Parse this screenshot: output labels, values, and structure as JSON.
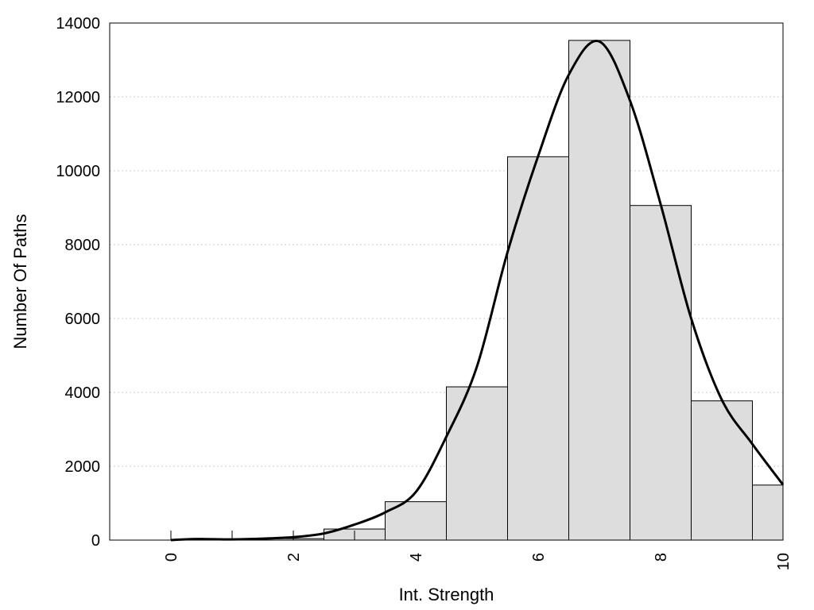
{
  "chart_data": {
    "type": "bar",
    "xlabel": "Int. Strength",
    "ylabel": "Number Of Paths",
    "xlim": [
      -1,
      10
    ],
    "ylim": [
      0,
      14000
    ],
    "x_ticks": [
      0,
      2,
      4,
      6,
      8,
      10
    ],
    "y_ticks": [
      0,
      2000,
      4000,
      6000,
      8000,
      10000,
      12000,
      14000
    ],
    "x_minor_ticks": [
      0,
      1,
      2,
      3
    ],
    "grid": "horizontal-dotted",
    "bar_color": "#dddddd",
    "bars": [
      {
        "x0": 0.5,
        "x1": 1.5,
        "value": 5
      },
      {
        "x0": 1.5,
        "x1": 2.5,
        "value": 40
      },
      {
        "x0": 2.5,
        "x1": 3.5,
        "value": 300
      },
      {
        "x0": 3.5,
        "x1": 4.5,
        "value": 1040
      },
      {
        "x0": 4.5,
        "x1": 5.5,
        "value": 4150
      },
      {
        "x0": 5.5,
        "x1": 6.5,
        "value": 10380
      },
      {
        "x0": 6.5,
        "x1": 7.5,
        "value": 13530
      },
      {
        "x0": 7.5,
        "x1": 8.5,
        "value": 9060
      },
      {
        "x0": 8.5,
        "x1": 9.5,
        "value": 3770
      },
      {
        "x0": 9.5,
        "x1": 10,
        "value": 1490
      }
    ],
    "density_curve": {
      "x": [
        0,
        0.4,
        1,
        1.5,
        2,
        2.5,
        3,
        3.5,
        4,
        4.5,
        5,
        5.5,
        6,
        6.5,
        7,
        7.5,
        8,
        8.5,
        9,
        9.5,
        10
      ],
      "y": [
        0,
        30,
        20,
        40,
        80,
        180,
        420,
        750,
        1300,
        2800,
        4700,
        7800,
        10400,
        12600,
        13500,
        11900,
        9100,
        6000,
        3800,
        2600,
        1500
      ]
    }
  }
}
